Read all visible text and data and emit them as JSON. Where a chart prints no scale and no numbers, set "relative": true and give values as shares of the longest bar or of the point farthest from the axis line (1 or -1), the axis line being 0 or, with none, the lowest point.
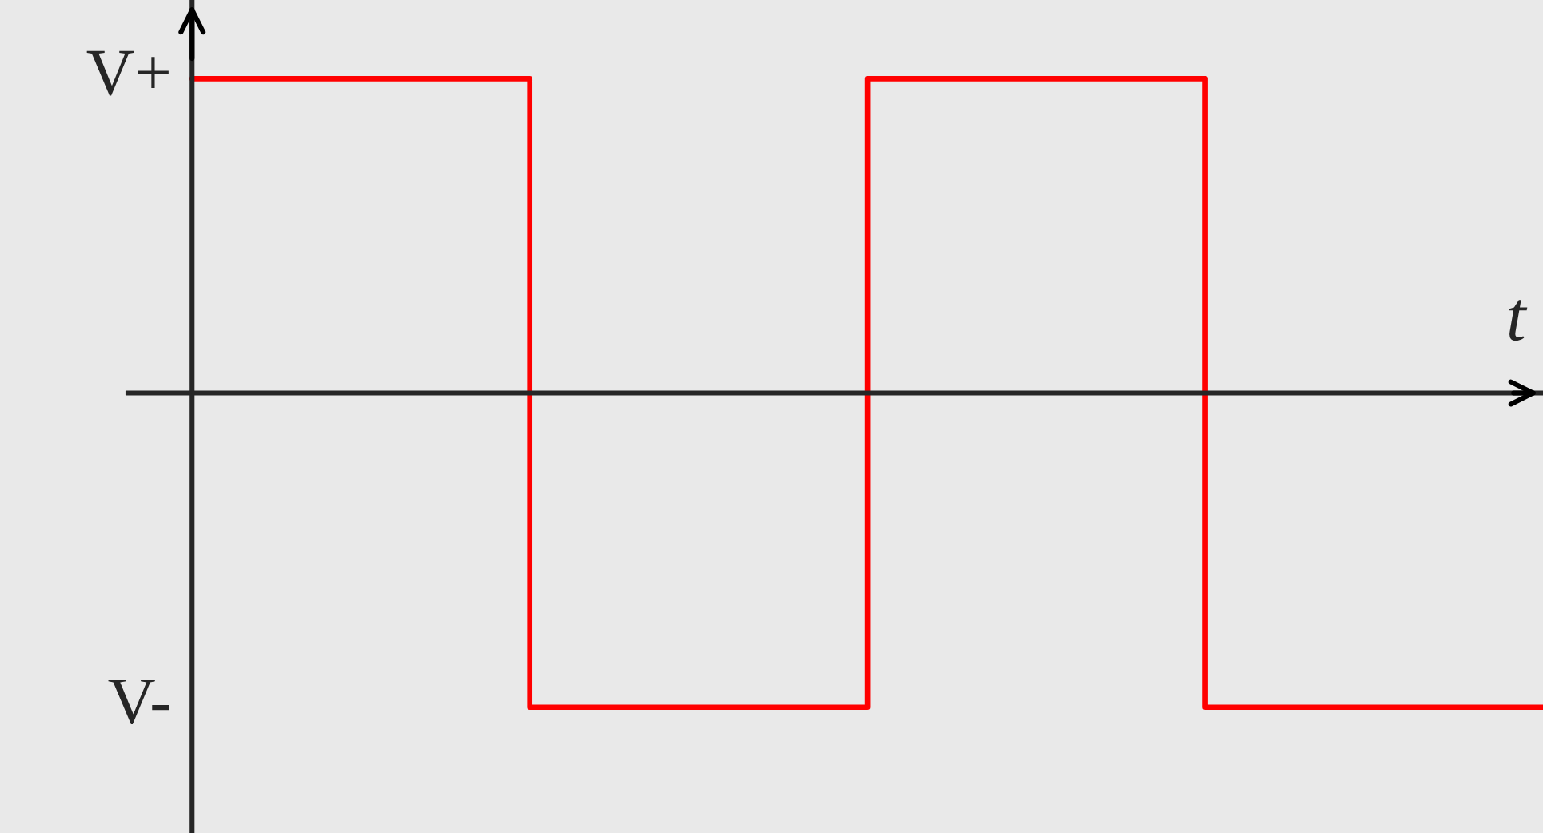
{
  "chart_data": {
    "type": "step",
    "xlabel": "t",
    "categories": [
      null,
      null,
      null,
      null,
      null
    ],
    "series": [
      {
        "color": "#ff0000",
        "values": [
          1,
          -1,
          1,
          -1,
          -1
        ]
      }
    ],
    "relative": true,
    "annotations": [
      "V+",
      "V-"
    ],
    "legend": false
  }
}
